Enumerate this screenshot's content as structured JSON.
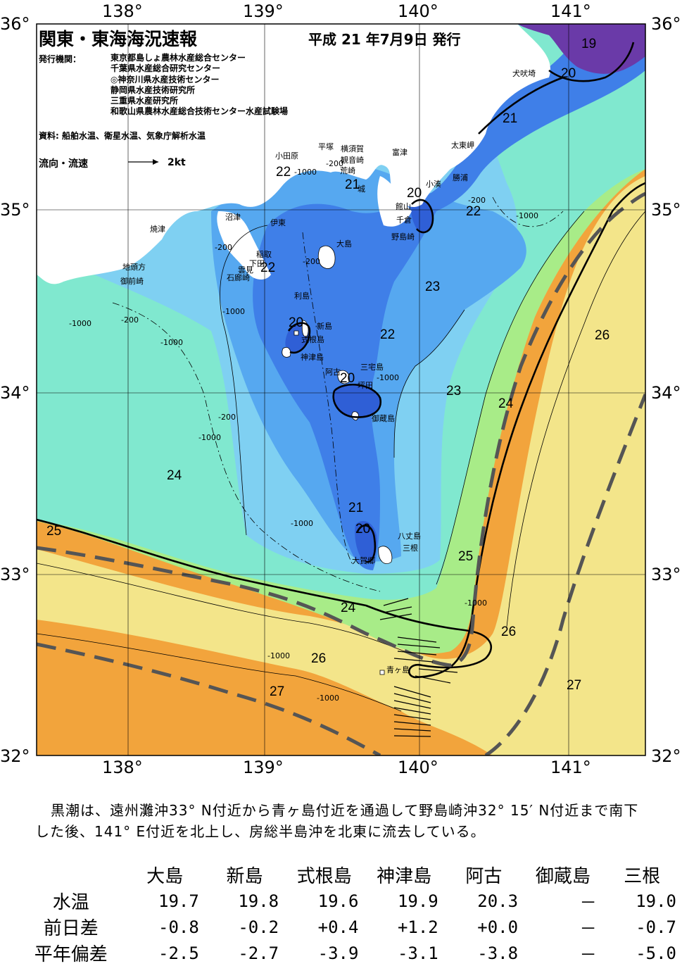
{
  "header": {
    "title": "関東・東海海況速報",
    "issue_date": "平成 21 年7月9日 発行",
    "org_label": "発行機関：",
    "organizations": [
      "東京都島しょ農林水産総合センター",
      "千葉県水産総合研究センター",
      "◎神奈川県水産技術センター",
      "静岡県水産技術研究所",
      "三重県水産研究所",
      "和歌山県農林水産総合技術センター水産試験場"
    ],
    "sources": "資料: 船舶水温、衛星水温、気象庁解析水温",
    "flow_label": "流向・流速",
    "flow_scale": "2kt"
  },
  "axes": {
    "longitudes": [
      "138°",
      "139°",
      "140°",
      "141°"
    ],
    "latitudes": [
      "36°",
      "35°",
      "34°",
      "33°",
      "32°"
    ]
  },
  "colors": {
    "c19": "#6a3aa8",
    "c20": "#2f5fd6",
    "c21": "#3f7fe8",
    "c22": "#56a8f0",
    "c23": "#7fd0f2",
    "c24": "#80e8cf",
    "c25": "#a8ec88",
    "c26": "#f3e58a",
    "c27": "#f2a43c",
    "land": "#ffffff",
    "kuroshio_axis": "#555555"
  },
  "places": {
    "inubozaki": "犬吠埼",
    "taitomisaki": "太東岬",
    "katsuura": "勝浦",
    "kominato": "小湊",
    "futtsu": "富津",
    "tateyama": "館山",
    "chikura": "千倉",
    "nojimazaki": "野島崎",
    "yokosuka": "横須賀",
    "kannonzaki": "観音崎",
    "arasaki": "荒崎",
    "jogashima": "城",
    "hiratsuka": "平塚",
    "odawara": "小田原",
    "numazu": "沼津",
    "ito": "伊東",
    "inatori": "稲取",
    "shimoda": "下田",
    "mera": "雲見",
    "irozaki": "石廊崎",
    "yaizu": "焼津",
    "jitogata": "地頭方",
    "omaezaki": "御前崎",
    "oshima": "大島",
    "toshima": "利島",
    "niijima": "新島",
    "shikinejima": "式根島",
    "kozushima": "神津島",
    "ako": "阿古",
    "miyakejima": "三宅島",
    "tsubota": "坪田",
    "mikurajima": "御蔵島",
    "hachijojima": "八丈島",
    "mitsune": "三根",
    "okago": "大賀郷",
    "aogashima": "青ヶ島"
  },
  "contour_labels": {
    "t19": "19",
    "t20": "20",
    "t21": "21",
    "t22": "22",
    "t23": "23",
    "t24": "24",
    "t25": "25",
    "t26": "26",
    "t27": "27",
    "d200": "-200",
    "d1000": "-1000"
  },
  "summary": "黒潮は、遠州灘沖33° N付近から青ヶ島付近を通過して野島崎沖32° 15′ N付近まで南下した後、141° E付近を北上し、房総半島沖を北東に流去している。",
  "stats": {
    "columns": [
      "大島",
      "新島",
      "式根島",
      "神津島",
      "阿古",
      "御蔵島",
      "三根"
    ],
    "rows": [
      {
        "label": "水温",
        "values": [
          "19.7",
          "19.8",
          "19.6",
          "19.9",
          "20.3",
          "－",
          "19.0"
        ]
      },
      {
        "label": "前日差",
        "values": [
          "-0.8",
          "-0.2",
          "+0.4",
          "+1.2",
          "+0.0",
          "－",
          "-0.7"
        ]
      },
      {
        "label": "平年偏差",
        "values": [
          "-2.5",
          "-2.7",
          "-3.9",
          "-3.1",
          "-3.8",
          "－",
          "-5.0"
        ]
      }
    ]
  }
}
